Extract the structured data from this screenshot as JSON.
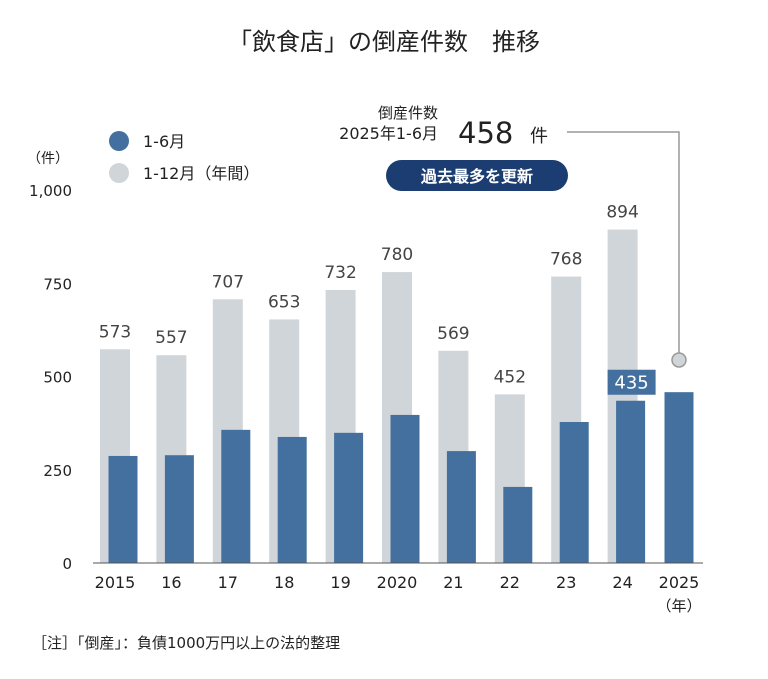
{
  "chart_data": {
    "type": "bar",
    "title": "「飲食店」の倒産件数　推移",
    "yunit": "（件）",
    "xunit": "（年）",
    "ylim": [
      0,
      1000
    ],
    "yticks": [
      0,
      250,
      500,
      750,
      1000
    ],
    "ytick_labels": [
      "0",
      "250",
      "500",
      "750",
      "1,000"
    ],
    "categories": [
      "2015",
      "16",
      "17",
      "18",
      "19",
      "2020",
      "21",
      "22",
      "23",
      "24",
      "2025"
    ],
    "series": [
      {
        "name": "1-12月（年間）",
        "color": "#d0d5da",
        "values": [
          573,
          557,
          707,
          653,
          732,
          780,
          569,
          452,
          768,
          894,
          null
        ]
      },
      {
        "name": "1-6月",
        "color": "#43709e",
        "values": [
          287,
          289,
          357,
          338,
          349,
          397,
          300,
          204,
          378,
          435,
          458
        ]
      }
    ],
    "data_labels_annual": [
      "573",
      "557",
      "707",
      "653",
      "732",
      "780",
      "569",
      "452",
      "768",
      "894"
    ],
    "label_2024_h1": "435",
    "legend_placement": "top-left",
    "grid": false,
    "callout": {
      "line1": "倒産件数",
      "line2": "2025年1-6月",
      "value": "458",
      "unit": "件",
      "badge": "過去最多を更新",
      "badge_color": "#1b3d72"
    },
    "note": "［注］「倒産」：負債1000万円以上の法的整理"
  }
}
